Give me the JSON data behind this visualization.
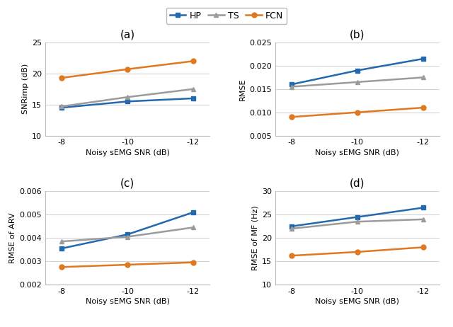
{
  "x": [
    -8,
    -10,
    -12
  ],
  "subplot_a": {
    "title": "(a)",
    "ylabel": "SNRimp (dB)",
    "xlabel": "Noisy sEMG SNR (dB)",
    "HP": [
      14.5,
      15.5,
      16.0
    ],
    "TS": [
      14.7,
      16.2,
      17.5
    ],
    "FCN": [
      19.3,
      20.7,
      22.0
    ],
    "ylim": [
      10,
      25
    ],
    "yticks": [
      10,
      15,
      20,
      25
    ]
  },
  "subplot_b": {
    "title": "(b)",
    "ylabel": "RMSE",
    "xlabel": "Noisy sEMG SNR (dB)",
    "HP": [
      0.016,
      0.019,
      0.0215
    ],
    "TS": [
      0.0155,
      0.0165,
      0.0175
    ],
    "FCN": [
      0.009,
      0.01,
      0.011
    ],
    "ylim": [
      0.005,
      0.025
    ],
    "yticks": [
      0.005,
      0.01,
      0.015,
      0.02,
      0.025
    ]
  },
  "subplot_c": {
    "title": "(c)",
    "ylabel": "RMSE of ARV",
    "xlabel": "Noisy sEMG SNR (dB)",
    "HP": [
      0.00355,
      0.00415,
      0.0051
    ],
    "TS": [
      0.00385,
      0.00405,
      0.00445
    ],
    "FCN": [
      0.00275,
      0.00285,
      0.00295
    ],
    "ylim": [
      0.002,
      0.006
    ],
    "yticks": [
      0.002,
      0.003,
      0.004,
      0.005,
      0.006
    ]
  },
  "subplot_d": {
    "title": "(d)",
    "ylabel": "RMSE of MF (Hz)",
    "xlabel": "Noisy sEMG SNR (dB)",
    "HP": [
      22.5,
      24.5,
      26.5
    ],
    "TS": [
      22.0,
      23.5,
      24.0
    ],
    "FCN": [
      16.2,
      17.0,
      18.0
    ],
    "ylim": [
      10,
      30
    ],
    "yticks": [
      10,
      15,
      20,
      25,
      30
    ]
  },
  "colors": {
    "HP": "#2469AE",
    "TS": "#9B9B9B",
    "FCN": "#E07820"
  },
  "markers": {
    "HP": "s",
    "TS": "^",
    "FCN": "o"
  },
  "fig_bg": "#FFFFFF",
  "axes_bg": "#FFFFFF",
  "grid_color": "#D3D3D3",
  "spine_color": "#BBBBBB",
  "title_fontsize": 11,
  "label_fontsize": 8,
  "tick_fontsize": 8,
  "linewidth": 1.8,
  "markersize": 5
}
